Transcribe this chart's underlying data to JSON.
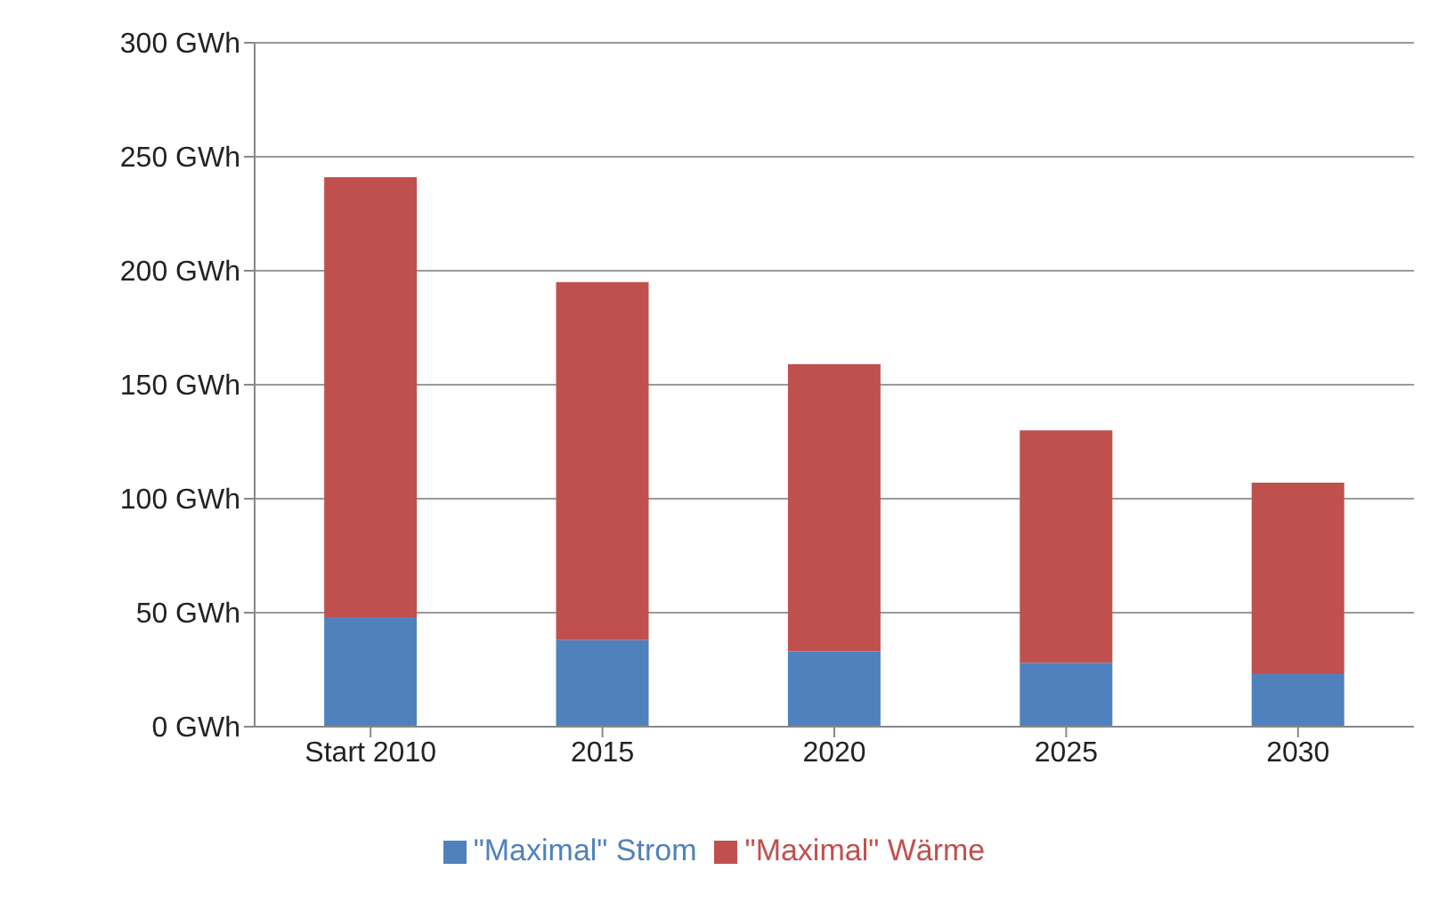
{
  "chart_data": {
    "type": "bar",
    "stacked": true,
    "categories": [
      "Start 2010",
      "2015",
      "2020",
      "2025",
      "2030"
    ],
    "series": [
      {
        "name": "\"Maximal\" Strom",
        "color": "#4f81bd",
        "values": [
          48,
          38,
          33,
          28,
          23
        ]
      },
      {
        "name": "\"Maximal\" Wärme",
        "color": "#c0504d",
        "values": [
          193,
          157,
          126,
          102,
          84
        ]
      }
    ],
    "ylim": [
      0,
      300
    ],
    "yticks": [
      {
        "value": 0,
        "label": "0 GWh"
      },
      {
        "value": 50,
        "label": "50 GWh"
      },
      {
        "value": 100,
        "label": "100 GWh"
      },
      {
        "value": 150,
        "label": "150 GWh"
      },
      {
        "value": 200,
        "label": "200 GWh"
      },
      {
        "value": 250,
        "label": "250 GWh"
      },
      {
        "value": 300,
        "label": "300 GWh"
      }
    ],
    "grid": "y",
    "legend": "bottom"
  }
}
